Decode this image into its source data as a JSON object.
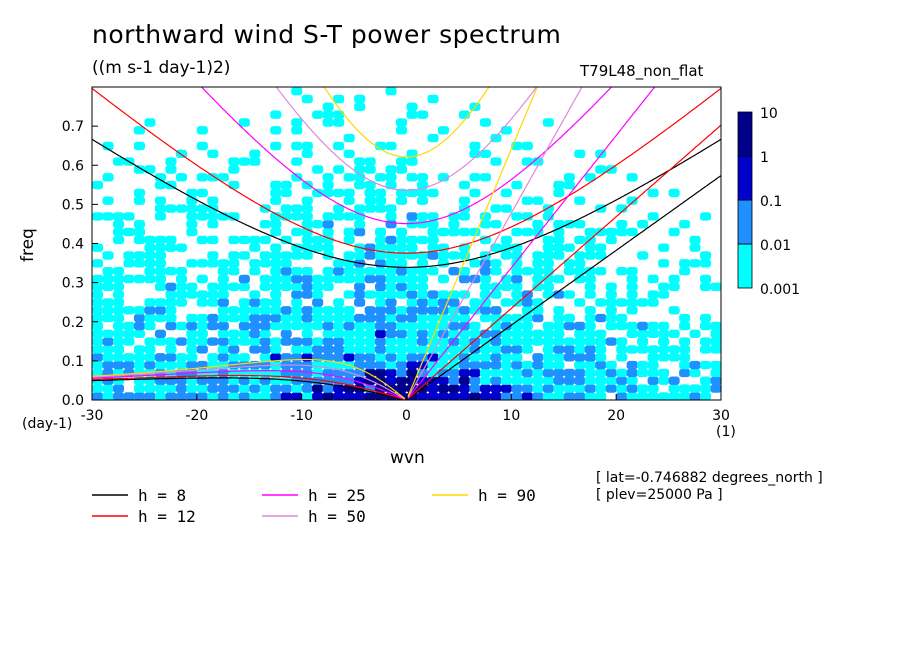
{
  "title": "northward wind S-T power spectrum",
  "subtitle": "((m s-1 day-1)2)",
  "run_name": "T79L48_non_flat",
  "meta_lines": [
    "[ lat=-0.746882 degrees_north ]",
    "[ plev=25000 Pa ]"
  ],
  "chart_data": {
    "type": "heatmap",
    "title": "northward wind S-T power spectrum",
    "xlabel": "wvn",
    "ylabel": "freq",
    "x_unit_label": "(1)",
    "y_unit_label": "(day-1)",
    "xlim": [
      -30,
      30
    ],
    "ylim": [
      0,
      0.8
    ],
    "xticks": [
      "-30",
      "-20",
      "-10",
      "0",
      "10",
      "20",
      "30"
    ],
    "yticks": [
      "0.0",
      "0.1",
      "0.2",
      "0.3",
      "0.4",
      "0.5",
      "0.6",
      "0.7"
    ],
    "colorbar": {
      "levels": [
        "0.001",
        "0.01",
        "0.1",
        "1",
        "10"
      ],
      "colors": [
        "#00ffff",
        "#1e90ff",
        "#0000cd",
        "#00008b",
        "#4b0082"
      ],
      "placement": "right"
    },
    "dispersion_curves": [
      {
        "name": "h =  8",
        "h": 8,
        "color": "#000000"
      },
      {
        "name": "h = 12",
        "h": 12,
        "color": "#ff0000"
      },
      {
        "name": "h = 25",
        "h": 25,
        "color": "#ff00ff"
      },
      {
        "name": "h = 50",
        "h": 50,
        "color": "#dd88dd"
      },
      {
        "name": "h = 90",
        "h": 90,
        "color": "#ffd700"
      }
    ]
  }
}
